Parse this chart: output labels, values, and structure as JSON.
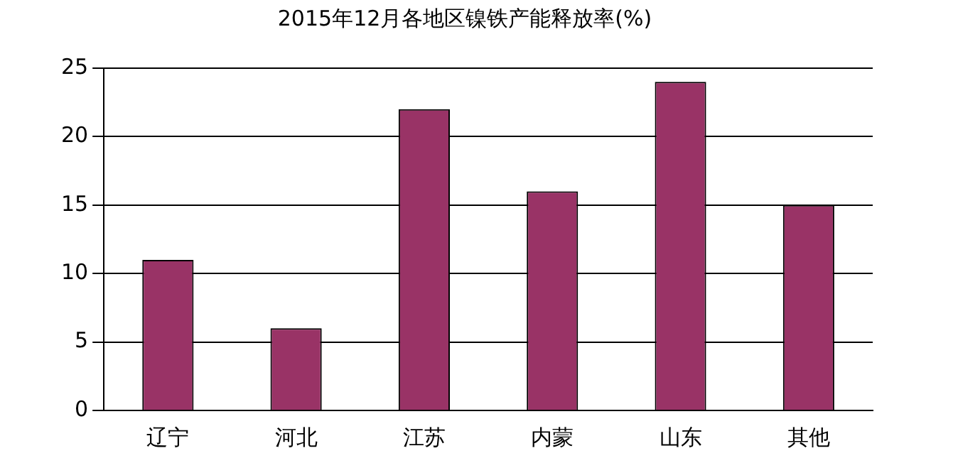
{
  "chart_data": {
    "type": "bar",
    "title": "2015年12月各地区镍铁产能释放率(%)",
    "categories": [
      "辽宁",
      "河北",
      "江苏",
      "内蒙",
      "山东",
      "其他"
    ],
    "values": [
      11,
      6,
      22,
      16,
      24,
      15
    ],
    "color": "#993366",
    "ylim": [
      0,
      25
    ],
    "yticks": [
      0,
      5,
      10,
      15,
      20,
      25
    ],
    "grid": "y",
    "legend": false
  }
}
